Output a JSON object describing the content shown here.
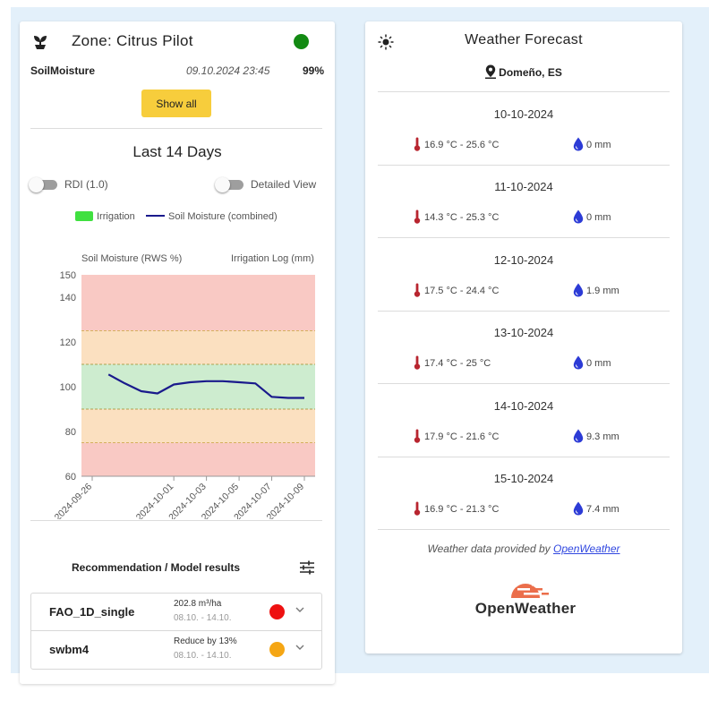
{
  "zone": {
    "title": "Zone: Citrus Pilot",
    "status_color": "#138a13",
    "sensor": {
      "name": "SoilMoisture",
      "timestamp": "09.10.2024 23:45",
      "value": "99%"
    },
    "show_all_label": "Show all",
    "days_title": "Last 14 Days",
    "toggles": [
      {
        "label": "RDI (1.0)",
        "on": false
      },
      {
        "label": "Detailed View",
        "on": false
      }
    ]
  },
  "chart_data": {
    "type": "line",
    "legend": [
      {
        "label": "Irrigation",
        "color": "#40e040"
      },
      {
        "label": "Soil Moisture (combined)",
        "color": "#1a1a8c"
      }
    ],
    "ylabel_left": "Soil Moisture (RWS %)",
    "ylabel_right": "Irrigation Log (mm)",
    "ylim": [
      60,
      150
    ],
    "yticks": [
      60,
      80,
      100,
      120,
      140,
      150
    ],
    "x_tick_labels": [
      "2024-09-26",
      "2024-10-01",
      "2024-10-03",
      "2024-10-05",
      "2024-10-07",
      "2024-10-09"
    ],
    "bands": [
      {
        "from": 60,
        "to": 75,
        "color": "#f9c9c4"
      },
      {
        "from": 75,
        "to": 90,
        "color": "#fbe0c0"
      },
      {
        "from": 90,
        "to": 110,
        "color": "#cdeccf"
      },
      {
        "from": 110,
        "to": 125,
        "color": "#fbe0c0"
      },
      {
        "from": 125,
        "to": 150,
        "color": "#f9c9c4"
      }
    ],
    "series": [
      {
        "name": "Soil Moisture (combined)",
        "x": [
          "2024-09-27",
          "2024-09-28",
          "2024-09-29",
          "2024-09-30",
          "2024-10-01",
          "2024-10-02",
          "2024-10-03",
          "2024-10-04",
          "2024-10-05",
          "2024-10-06",
          "2024-10-07",
          "2024-10-08",
          "2024-10-09"
        ],
        "values": [
          105.5,
          101.5,
          98,
          97,
          101,
          102,
          102.5,
          102.5,
          102,
          101.5,
          95.5,
          95,
          95
        ]
      }
    ],
    "grid": false
  },
  "recommendation": {
    "title": "Recommendation / Model results",
    "rows": [
      {
        "name": "FAO_1D_single",
        "value": "202.8 m³/ha",
        "dates": "08.10. - 14.10.",
        "color": "#ee1111"
      },
      {
        "name": "swbm4",
        "value": "Reduce by 13%",
        "dates": "08.10. - 14.10.",
        "color": "#f5a614"
      }
    ]
  },
  "weather": {
    "title": "Weather Forecast",
    "location": "Domeño, ES",
    "days": [
      {
        "date": "10-10-2024",
        "temp": "16.9 °C - 25.6 °C",
        "rain": "0 mm"
      },
      {
        "date": "11-10-2024",
        "temp": "14.3 °C - 25.3 °C",
        "rain": "0 mm"
      },
      {
        "date": "12-10-2024",
        "temp": "17.5 °C - 24.4 °C",
        "rain": "1.9 mm"
      },
      {
        "date": "13-10-2024",
        "temp": "17.4 °C - 25 °C",
        "rain": "0 mm"
      },
      {
        "date": "14-10-2024",
        "temp": "17.9 °C - 21.6 °C",
        "rain": "9.3 mm"
      },
      {
        "date": "15-10-2024",
        "temp": "16.9 °C - 21.3 °C",
        "rain": "7.4 mm"
      }
    ],
    "credit_prefix": "Weather data provided by",
    "credit_link": "OpenWeather",
    "logo_text": "OpenWeather"
  }
}
